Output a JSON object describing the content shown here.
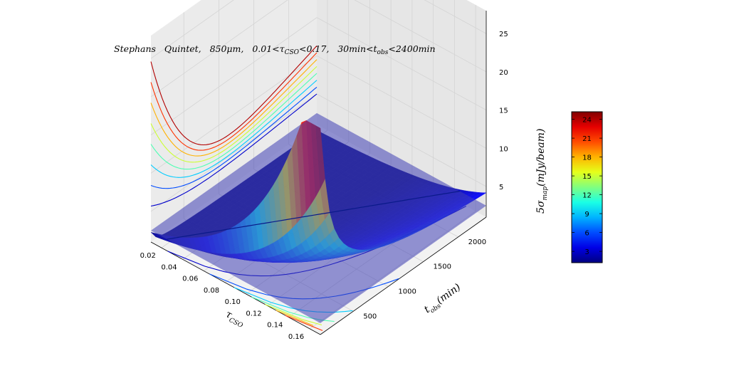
{
  "chart_data": {
    "type": "surface3d",
    "title": {
      "name": "Stephans",
      "object": "Quintet,",
      "wavelength": "850μm,",
      "tau_low": "0.01",
      "tau_sym": "τ",
      "tau_sub": "CSO",
      "tau_high": "0.17,",
      "t_low": "30min",
      "t_sym": "t",
      "t_sub": "obs",
      "t_high": "2400min"
    },
    "xlabel": {
      "sym": "τ",
      "sub": "CSO"
    },
    "ylabel": {
      "pre": "t",
      "sub": "obs",
      "post": "(min)"
    },
    "zlabel": {
      "pre": "5σ",
      "sub": "map",
      "post": "(mJy/beam)"
    },
    "x_ticks": [
      "0.02",
      "0.04",
      "0.06",
      "0.08",
      "0.10",
      "0.12",
      "0.14",
      "0.16"
    ],
    "y_ticks": [
      "500",
      "1000",
      "1500",
      "2000"
    ],
    "z_ticks": [
      "5",
      "10",
      "15",
      "20",
      "25"
    ],
    "colorbar_ticks": [
      "3",
      "6",
      "9",
      "12",
      "15",
      "18",
      "21",
      "24"
    ],
    "xlim": [
      0.01,
      0.17
    ],
    "ylim": [
      30,
      2400
    ],
    "zlim": [
      1,
      28
    ],
    "colorbar_range": [
      1.2,
      25.2
    ],
    "colormap": "jet",
    "grid": true,
    "plane_level": 2.5,
    "plane_color": "#3f3fb4"
  }
}
